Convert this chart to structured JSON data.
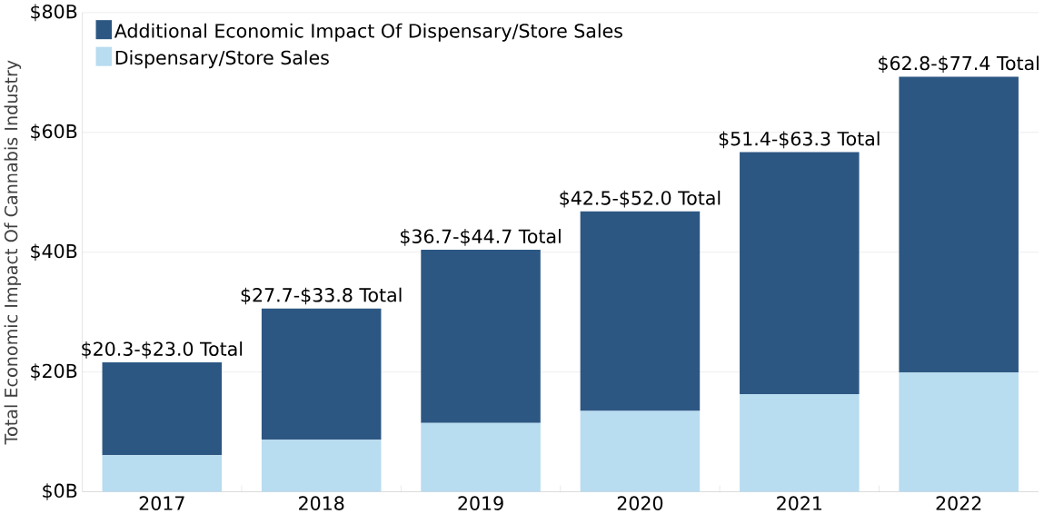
{
  "chart_data": {
    "type": "bar",
    "stacked": true,
    "ylabel": "Total Economic Impact Of Cannabis Industry",
    "categories": [
      "2017",
      "2018",
      "2019",
      "2020",
      "2021",
      "2022"
    ],
    "series": [
      {
        "name": "Dispensary/Store Sales",
        "color": "#b8dcf0",
        "values": [
          6.1,
          8.7,
          11.5,
          13.5,
          16.3,
          19.9
        ]
      },
      {
        "name": "Additional Economic Impact Of Dispensary/Store Sales",
        "color": "#2d5783",
        "values": [
          15.5,
          21.9,
          28.9,
          33.3,
          40.4,
          49.4
        ]
      }
    ],
    "totals": [
      "$20.3-$23.0 Total",
      "$27.7-$33.8 Total",
      "$36.7-$44.7 Total",
      "$42.5-$52.0 Total",
      "$51.4-$63.3 Total",
      "$62.8-$77.4 Total"
    ],
    "ylim": [
      0,
      80
    ],
    "yticks": [
      {
        "value": 0,
        "label": "$0B"
      },
      {
        "value": 20,
        "label": "$20B"
      },
      {
        "value": 40,
        "label": "$40B"
      },
      {
        "value": 60,
        "label": "$60B"
      },
      {
        "value": 80,
        "label": "$80B"
      }
    ],
    "grid": "y",
    "legend": "top left"
  }
}
